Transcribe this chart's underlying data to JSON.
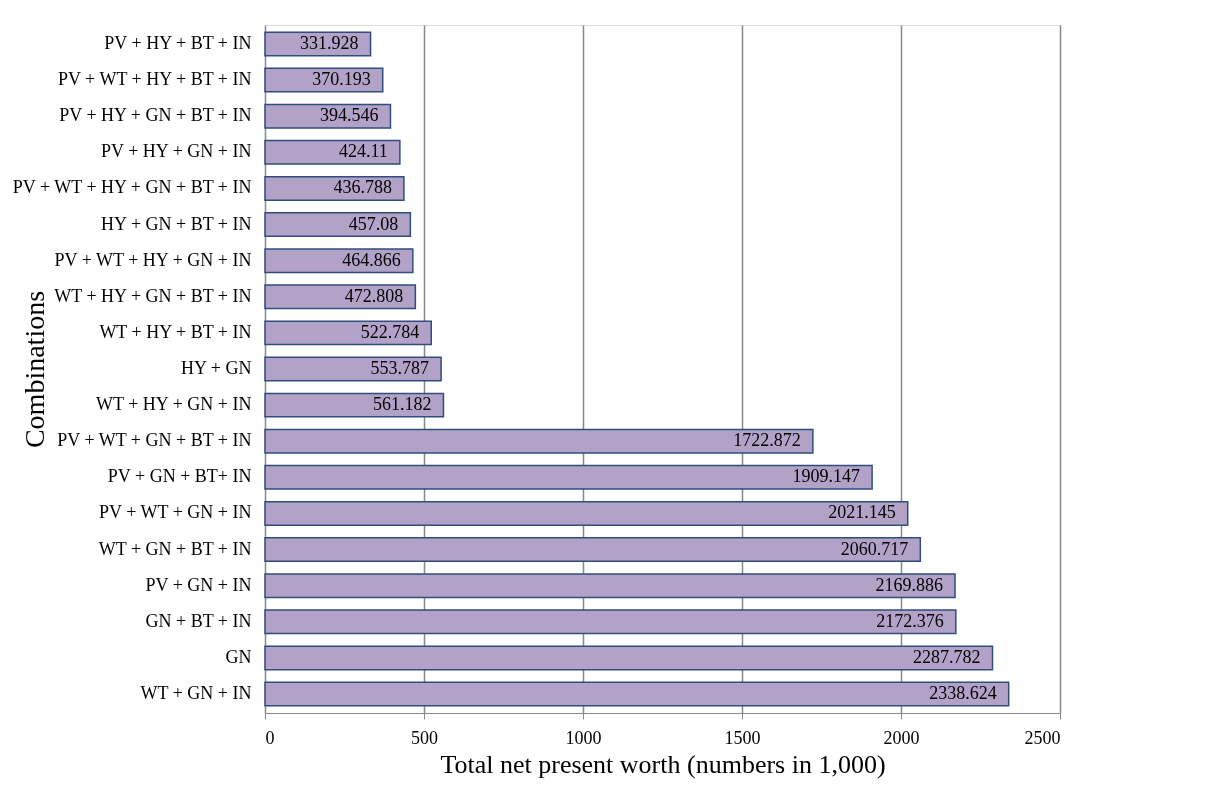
{
  "chart_data": {
    "type": "bar",
    "orientation": "horizontal",
    "xlabel": "Total net present worth (numbers in 1,000)",
    "ylabel": "Combinations",
    "categories": [
      "PV + HY + BT + IN",
      "PV + WT + HY + BT + IN",
      "PV + HY + GN + BT + IN",
      "PV + HY + GN + IN",
      "PV + WT + HY + GN + BT + IN",
      "HY + GN + BT + IN",
      "PV + WT + HY + GN + IN",
      "WT + HY + GN + BT + IN",
      "WT + HY + BT + IN",
      "HY + GN",
      "WT + HY + GN + IN",
      "PV + WT + GN + BT + IN",
      "PV + GN + BT+ IN",
      "PV + WT + GN + IN",
      "WT + GN + BT + IN",
      "PV + GN + IN",
      "GN + BT + IN",
      "GN",
      "WT + GN + IN"
    ],
    "values": [
      331.928,
      370.193,
      394.546,
      424.11,
      436.788,
      457.08,
      464.866,
      472.808,
      522.784,
      553.787,
      561.182,
      1722.872,
      1909.147,
      2021.145,
      2060.717,
      2169.886,
      2172.376,
      2287.782,
      2338.624
    ],
    "color": "#b3a2c7",
    "xlim": [
      0,
      2500
    ],
    "xticks": [
      0,
      500,
      1000,
      1500,
      2000,
      2500
    ],
    "grid": "x",
    "data_labels": true
  }
}
